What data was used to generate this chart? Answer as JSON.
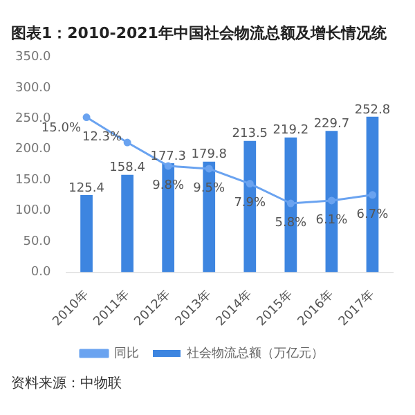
{
  "chart_data": {
    "type": "bar",
    "title": "图表1：2010-2021年中国社会物流总额及增长情况统",
    "categories": [
      "2010年",
      "2011年",
      "2012年",
      "2013年",
      "2014年",
      "2015年",
      "2016年",
      "2017年"
    ],
    "series": [
      {
        "name": "社会物流总额（万亿元）",
        "color": "#3d85e0",
        "values": [
          125.4,
          158.4,
          177.3,
          179.8,
          213.5,
          219.2,
          229.7,
          252.8
        ],
        "value_labels": [
          "125.4",
          "158.4",
          "177.3",
          "179.8",
          "213.5",
          "219.2",
          "229.7",
          "252.8"
        ]
      },
      {
        "name": "同比",
        "type": "line",
        "axis": "y2",
        "color": "#6aa3f0",
        "marker": "circle",
        "values": [
          15.0,
          12.3,
          9.8,
          9.5,
          7.9,
          5.8,
          6.1,
          6.7
        ],
        "value_labels": [
          "15.0%",
          "12.3%",
          "9.8%",
          "9.5%",
          "7.9%",
          "5.8%",
          "6.1%",
          "6.7%"
        ]
      }
    ],
    "ylim": [
      0,
      350
    ],
    "yticks": [
      {
        "value": 0,
        "label": "0.0"
      },
      {
        "value": 50,
        "label": "50.0"
      },
      {
        "value": 100,
        "label": "100.0"
      },
      {
        "value": 150,
        "label": "150.0"
      },
      {
        "value": 200,
        "label": "200.0"
      },
      {
        "value": 250,
        "label": "250.0"
      },
      {
        "value": 300,
        "label": "300.0"
      },
      {
        "value": 350,
        "label": "350.0"
      }
    ],
    "grid": false,
    "legend": "bottom",
    "annotations": [
      "资料来源：中物联"
    ]
  }
}
